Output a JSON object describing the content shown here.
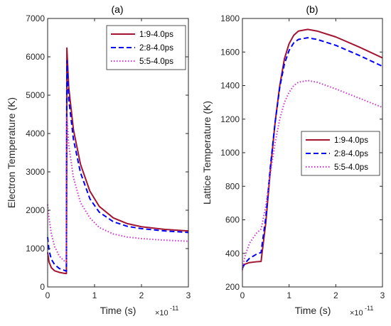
{
  "chart_data": [
    {
      "type": "line",
      "title": "(a)",
      "xlabel": "Time (s)",
      "ylabel": "Electron Temperature (K)",
      "x_multiplier_label": "×10",
      "x_multiplier_exp": "-11",
      "xlim": [
        0,
        3
      ],
      "ylim": [
        0,
        7000
      ],
      "xticks": [
        0,
        1,
        2,
        3
      ],
      "xtick_labels": [
        "0",
        "1",
        "2",
        "3"
      ],
      "yticks": [
        0,
        1000,
        2000,
        3000,
        4000,
        5000,
        6000,
        7000
      ],
      "ytick_labels": [
        "0",
        "1000",
        "2000",
        "3000",
        "4000",
        "5000",
        "6000",
        "7000"
      ],
      "grid": false,
      "legend_position": "top-right",
      "series": [
        {
          "name": "1:9-4.0ps",
          "color": "#a2142f",
          "style": "solid",
          "x": [
            0,
            0.03,
            0.08,
            0.15,
            0.25,
            0.38,
            0.4,
            0.41,
            0.45,
            0.55,
            0.7,
            0.9,
            1.1,
            1.4,
            1.7,
            2.0,
            2.5,
            3.0
          ],
          "y": [
            900,
            650,
            500,
            420,
            380,
            350,
            350,
            6230,
            5200,
            4100,
            3200,
            2500,
            2100,
            1800,
            1650,
            1570,
            1500,
            1460
          ]
        },
        {
          "name": "2:8-4.0ps",
          "color": "#0000ff",
          "style": "dashed",
          "x": [
            0,
            0.03,
            0.08,
            0.15,
            0.25,
            0.38,
            0.4,
            0.41,
            0.45,
            0.55,
            0.7,
            0.9,
            1.1,
            1.4,
            1.7,
            2.0,
            2.5,
            3.0
          ],
          "y": [
            1300,
            950,
            720,
            580,
            480,
            420,
            410,
            5900,
            4900,
            3850,
            2980,
            2300,
            1950,
            1700,
            1580,
            1520,
            1460,
            1420
          ]
        },
        {
          "name": "5:5-4.0ps",
          "color": "#cc33cc",
          "style": "dotted",
          "x": [
            0,
            0.03,
            0.08,
            0.15,
            0.25,
            0.38,
            0.4,
            0.41,
            0.45,
            0.55,
            0.7,
            0.9,
            1.1,
            1.4,
            1.7,
            2.0,
            2.5,
            3.0
          ],
          "y": [
            2150,
            1800,
            1380,
            1050,
            800,
            650,
            630,
            4450,
            3700,
            2850,
            2200,
            1800,
            1550,
            1380,
            1300,
            1260,
            1220,
            1190
          ]
        }
      ]
    },
    {
      "type": "line",
      "title": "(b)",
      "xlabel": "Time (s)",
      "ylabel": "Lattice Temperature (K)",
      "x_multiplier_label": "×10",
      "x_multiplier_exp": "-11",
      "xlim": [
        0,
        3
      ],
      "ylim": [
        200,
        1800
      ],
      "xticks": [
        0,
        1,
        2,
        3
      ],
      "xtick_labels": [
        "0",
        "1",
        "2",
        "3"
      ],
      "yticks": [
        200,
        400,
        600,
        800,
        1000,
        1200,
        1400,
        1600,
        1800
      ],
      "ytick_labels": [
        "200",
        "400",
        "600",
        "800",
        "1000",
        "1200",
        "1400",
        "1600",
        "1800"
      ],
      "grid": false,
      "legend_position": "center-right",
      "series": [
        {
          "name": "1:9-4.0ps",
          "color": "#a2142f",
          "style": "solid",
          "x": [
            0,
            0.05,
            0.15,
            0.3,
            0.4,
            0.42,
            0.5,
            0.6,
            0.7,
            0.8,
            0.9,
            1.0,
            1.1,
            1.2,
            1.4,
            1.6,
            2.0,
            2.5,
            3.0
          ],
          "y": [
            320,
            335,
            345,
            350,
            352,
            400,
            580,
            900,
            1180,
            1400,
            1560,
            1650,
            1700,
            1725,
            1735,
            1725,
            1690,
            1630,
            1565
          ]
        },
        {
          "name": "2:8-4.0ps",
          "color": "#0000ff",
          "style": "dashed",
          "x": [
            0,
            0.05,
            0.15,
            0.3,
            0.4,
            0.42,
            0.5,
            0.6,
            0.7,
            0.8,
            0.9,
            1.0,
            1.1,
            1.2,
            1.4,
            1.6,
            2.0,
            2.5,
            3.0
          ],
          "y": [
            310,
            340,
            370,
            395,
            405,
            450,
            610,
            920,
            1180,
            1390,
            1530,
            1610,
            1655,
            1675,
            1685,
            1675,
            1640,
            1580,
            1515
          ]
        },
        {
          "name": "5:5-4.0ps",
          "color": "#cc33cc",
          "style": "dotted",
          "x": [
            0,
            0.05,
            0.15,
            0.3,
            0.4,
            0.42,
            0.5,
            0.6,
            0.7,
            0.8,
            0.9,
            1.0,
            1.1,
            1.2,
            1.4,
            1.6,
            2.0,
            2.5,
            3.0
          ],
          "y": [
            300,
            380,
            460,
            520,
            545,
            570,
            680,
            880,
            1060,
            1200,
            1300,
            1360,
            1400,
            1420,
            1430,
            1420,
            1380,
            1325,
            1270
          ]
        }
      ]
    }
  ]
}
